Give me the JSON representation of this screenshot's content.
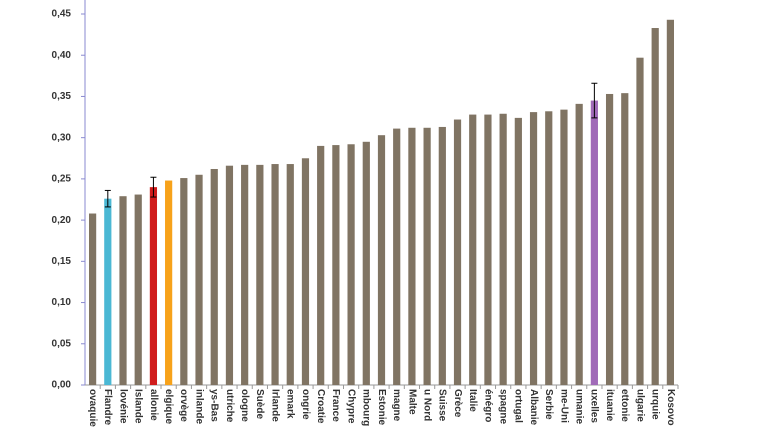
{
  "chart_data": {
    "type": "bar",
    "categories": [
      "ovaquie",
      "Flandre",
      "lovénie",
      "Islande",
      "allonie",
      "elgique",
      "orvège",
      "inlande",
      "ys-Bas",
      "utriche",
      "ologne",
      "Suède",
      "Irlande",
      "emark",
      "ongrie",
      "Croatie",
      "France",
      "Chypre",
      "mbourg",
      "Estonie",
      "magne",
      "Malte",
      "u Nord",
      "Suisse",
      "Grèce",
      "Italie",
      "énégro",
      "spagne",
      "ortugal",
      "Albanie",
      "Serbie",
      "me-Uni",
      "umanie",
      "uxelles",
      "ituanie",
      "ettonie",
      "ulgarie",
      "urquie",
      "Kosovo"
    ],
    "values": [
      0.208,
      0.226,
      0.229,
      0.231,
      0.24,
      0.248,
      0.251,
      0.255,
      0.262,
      0.266,
      0.267,
      0.267,
      0.268,
      0.268,
      0.275,
      0.29,
      0.291,
      0.292,
      0.295,
      0.303,
      0.311,
      0.312,
      0.312,
      0.313,
      0.322,
      0.328,
      0.328,
      0.329,
      0.324,
      0.331,
      0.332,
      0.334,
      0.341,
      0.345,
      0.353,
      0.354,
      0.397,
      0.433,
      0.443
    ],
    "errors": [
      null,
      0.01,
      null,
      null,
      0.012,
      null,
      null,
      null,
      null,
      null,
      null,
      null,
      null,
      null,
      null,
      null,
      null,
      null,
      null,
      null,
      null,
      null,
      null,
      null,
      null,
      null,
      null,
      null,
      null,
      null,
      null,
      null,
      null,
      0.021,
      null,
      null,
      null,
      null,
      null
    ],
    "color": "#807463",
    "colors": [
      null,
      "#4bb8d4",
      null,
      null,
      "#d01c1c",
      "#f7a21a",
      null,
      null,
      null,
      null,
      null,
      null,
      null,
      null,
      null,
      null,
      null,
      null,
      null,
      null,
      null,
      null,
      null,
      null,
      null,
      null,
      null,
      null,
      null,
      null,
      null,
      null,
      null,
      "#a06ab8",
      null,
      null,
      null,
      null,
      null
    ],
    "ylim": [
      0,
      0.45
    ],
    "yticks": [
      {
        "value": 0,
        "label": "0,00"
      },
      {
        "value": 0.05,
        "label": "0,05"
      },
      {
        "value": 0.1,
        "label": "0,10"
      },
      {
        "value": 0.15,
        "label": "0,15"
      },
      {
        "value": 0.2,
        "label": "0,20"
      },
      {
        "value": 0.25,
        "label": "0,25"
      },
      {
        "value": 0.3,
        "label": "0,30"
      },
      {
        "value": 0.35,
        "label": "0,35"
      },
      {
        "value": 0.4,
        "label": "0,40"
      },
      {
        "value": 0.45,
        "label": "0,45"
      }
    ],
    "grid": false
  }
}
